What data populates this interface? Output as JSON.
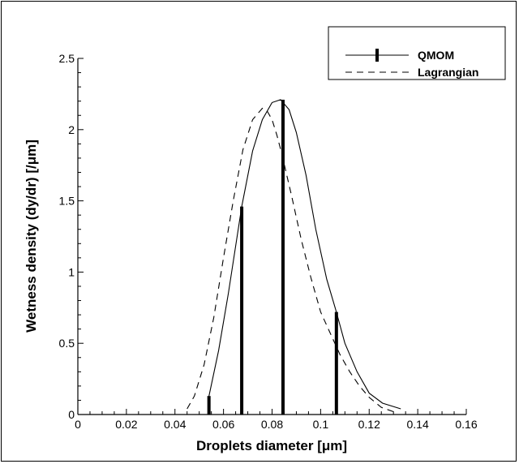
{
  "chart_data": {
    "type": "line",
    "title": "",
    "xlabel": "Droplets diameter [μm]",
    "ylabel": "Wetness density (dy/dr) [/μm]",
    "xlim": [
      0,
      0.16
    ],
    "ylim": [
      0,
      2.5
    ],
    "x_ticks": [
      0,
      0.02,
      0.04,
      0.06,
      0.08,
      0.1,
      0.12,
      0.14,
      0.16
    ],
    "x_tick_labels": [
      "0",
      "0.02",
      "0.04",
      "0.06",
      "0.08",
      "0.1",
      "0.12",
      "0.14",
      "0.16"
    ],
    "y_ticks": [
      0,
      0.5,
      1,
      1.5,
      2,
      2.5
    ],
    "y_tick_labels": [
      "0",
      "0.5",
      "1",
      "1.5",
      "2",
      "2.5"
    ],
    "grid": false,
    "legend_position": "top-right",
    "series": [
      {
        "name": "QMOM",
        "style": "solid",
        "color": "#000000",
        "x": [
          0.054,
          0.058,
          0.062,
          0.0675,
          0.072,
          0.076,
          0.08,
          0.0835,
          0.087,
          0.09,
          0.094,
          0.098,
          0.1025,
          0.1065,
          0.11,
          0.115,
          0.12,
          0.1255,
          0.133
        ],
        "y": [
          0.13,
          0.45,
          0.85,
          1.46,
          1.85,
          2.07,
          2.19,
          2.21,
          2.14,
          1.98,
          1.68,
          1.3,
          0.95,
          0.72,
          0.5,
          0.3,
          0.15,
          0.08,
          0.04
        ]
      },
      {
        "name": "Lagrangian",
        "style": "dashed",
        "color": "#000000",
        "x": [
          0.045,
          0.048,
          0.052,
          0.056,
          0.06,
          0.064,
          0.068,
          0.072,
          0.076,
          0.078,
          0.08,
          0.082,
          0.084,
          0.088,
          0.092,
          0.096,
          0.1,
          0.104,
          0.108,
          0.112,
          0.116,
          0.12,
          0.125,
          0.13
        ],
        "y": [
          0.04,
          0.13,
          0.35,
          0.68,
          1.1,
          1.5,
          1.86,
          2.07,
          2.15,
          2.13,
          2.07,
          1.96,
          1.83,
          1.54,
          1.23,
          0.96,
          0.72,
          0.57,
          0.42,
          0.3,
          0.2,
          0.12,
          0.05,
          0.02
        ]
      }
    ],
    "qmom_bars": {
      "x": [
        0.054,
        0.0675,
        0.0845,
        0.1065
      ],
      "y": [
        0.13,
        1.46,
        2.21,
        0.72
      ]
    }
  }
}
